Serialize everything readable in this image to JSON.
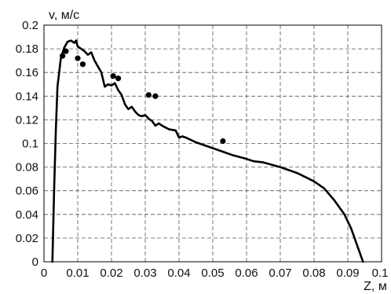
{
  "chart_data": {
    "type": "line",
    "xlabel": "Z, м",
    "ylabel": "v, м/с",
    "xlim": [
      0,
      0.1
    ],
    "ylim": [
      0,
      0.2
    ],
    "grid": true,
    "x_ticks": [
      "0",
      "0.01",
      "0.02",
      "0.03",
      "0.04",
      "0.05",
      "0.06",
      "0.07",
      "0.08",
      "0.09",
      "0.1"
    ],
    "y_ticks": [
      "0",
      "0.02",
      "0.04",
      "0.06",
      "0.08",
      "0.1",
      "0.12",
      "0.14",
      "0.16",
      "0.18",
      "0.2"
    ],
    "series": [
      {
        "kind": "line",
        "color": "#000000",
        "points": [
          [
            0.0025,
            0.0
          ],
          [
            0.003,
            0.06
          ],
          [
            0.0035,
            0.11
          ],
          [
            0.004,
            0.148
          ],
          [
            0.005,
            0.172
          ],
          [
            0.006,
            0.181
          ],
          [
            0.007,
            0.186
          ],
          [
            0.008,
            0.187
          ],
          [
            0.009,
            0.185
          ],
          [
            0.0095,
            0.187
          ],
          [
            0.01,
            0.182
          ],
          [
            0.011,
            0.18
          ],
          [
            0.012,
            0.178
          ],
          [
            0.013,
            0.175
          ],
          [
            0.014,
            0.177
          ],
          [
            0.015,
            0.17
          ],
          [
            0.016,
            0.165
          ],
          [
            0.017,
            0.16
          ],
          [
            0.018,
            0.148
          ],
          [
            0.019,
            0.15
          ],
          [
            0.02,
            0.149
          ],
          [
            0.021,
            0.151
          ],
          [
            0.022,
            0.145
          ],
          [
            0.023,
            0.141
          ],
          [
            0.024,
            0.133
          ],
          [
            0.025,
            0.129
          ],
          [
            0.026,
            0.131
          ],
          [
            0.027,
            0.127
          ],
          [
            0.028,
            0.124
          ],
          [
            0.029,
            0.123
          ],
          [
            0.03,
            0.124
          ],
          [
            0.031,
            0.121
          ],
          [
            0.032,
            0.119
          ],
          [
            0.033,
            0.115
          ],
          [
            0.034,
            0.117
          ],
          [
            0.035,
            0.115
          ],
          [
            0.037,
            0.112
          ],
          [
            0.039,
            0.111
          ],
          [
            0.04,
            0.105
          ],
          [
            0.041,
            0.106
          ],
          [
            0.042,
            0.105
          ],
          [
            0.045,
            0.101
          ],
          [
            0.048,
            0.098
          ],
          [
            0.05,
            0.096
          ],
          [
            0.053,
            0.093
          ],
          [
            0.056,
            0.09
          ],
          [
            0.06,
            0.087
          ],
          [
            0.062,
            0.085
          ],
          [
            0.065,
            0.084
          ],
          [
            0.07,
            0.08
          ],
          [
            0.075,
            0.075
          ],
          [
            0.08,
            0.068
          ],
          [
            0.083,
            0.062
          ],
          [
            0.086,
            0.052
          ],
          [
            0.089,
            0.04
          ],
          [
            0.091,
            0.028
          ],
          [
            0.093,
            0.012
          ],
          [
            0.0945,
            0.0
          ]
        ]
      },
      {
        "kind": "scatter",
        "color": "#000000",
        "points": [
          [
            0.0055,
            0.174
          ],
          [
            0.0065,
            0.178
          ],
          [
            0.01,
            0.172
          ],
          [
            0.0115,
            0.167
          ],
          [
            0.0205,
            0.157
          ],
          [
            0.022,
            0.155
          ],
          [
            0.031,
            0.141
          ],
          [
            0.033,
            0.14
          ],
          [
            0.053,
            0.102
          ]
        ]
      }
    ]
  }
}
